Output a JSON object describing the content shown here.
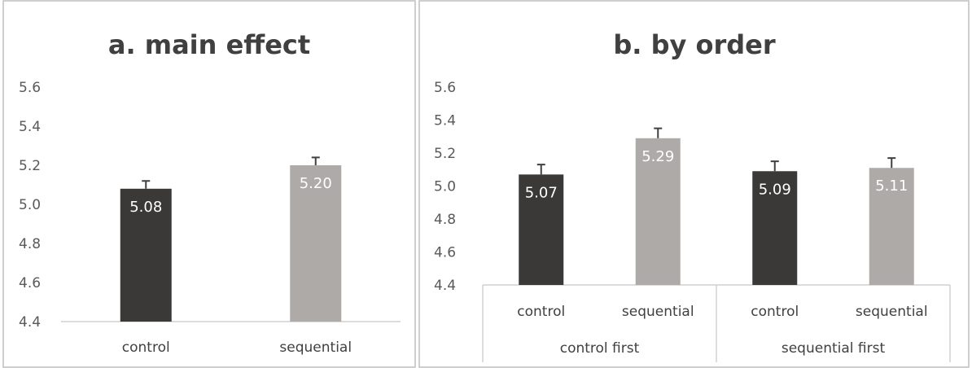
{
  "colors": {
    "control": "#3a3938",
    "sequential": "#aeaaa8",
    "frame": "#bfbfbf"
  },
  "chart_data": [
    {
      "type": "bar",
      "title": "a. main effect",
      "ylim": [
        4.4,
        5.6
      ],
      "yticks": [
        "5.6",
        "5.4",
        "5.2",
        "5.0",
        "4.8",
        "4.6",
        "4.4"
      ],
      "categories": [
        "control",
        "sequential"
      ],
      "values": [
        5.08,
        5.2
      ],
      "value_labels": [
        "5.08",
        "5.20"
      ],
      "error": [
        0.04,
        0.04
      ],
      "colors": [
        "#3a3938",
        "#aeaaa8"
      ],
      "grid": false
    },
    {
      "type": "bar",
      "title": "b. by order",
      "ylim": [
        4.4,
        5.6
      ],
      "yticks": [
        "5.6",
        "5.4",
        "5.2",
        "5.0",
        "4.8",
        "4.6",
        "4.4"
      ],
      "groups": [
        "control first",
        "sequential first"
      ],
      "categories": [
        "control",
        "sequential",
        "control",
        "sequential"
      ],
      "values": [
        5.07,
        5.29,
        5.09,
        5.11
      ],
      "value_labels": [
        "5.07",
        "5.29",
        "5.09",
        "5.11"
      ],
      "error": [
        0.06,
        0.06,
        0.06,
        0.06
      ],
      "colors": [
        "#3a3938",
        "#aeaaa8",
        "#3a3938",
        "#aeaaa8"
      ],
      "grid": false
    }
  ]
}
